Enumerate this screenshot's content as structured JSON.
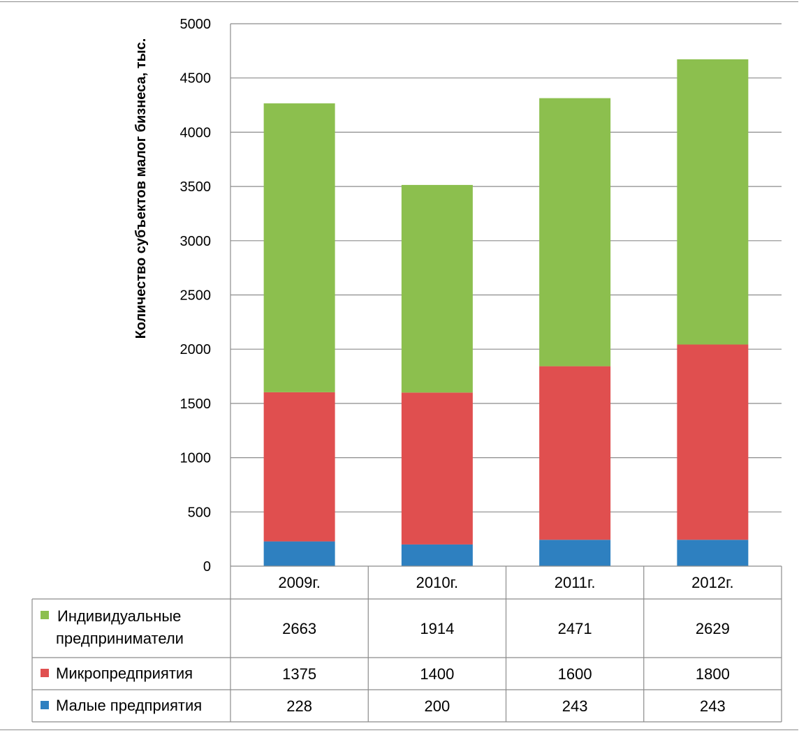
{
  "chart_data": {
    "type": "bar",
    "stacked": true,
    "categories": [
      "2009г.",
      "2010г.",
      "2011г.",
      "2012г."
    ],
    "series": [
      {
        "name": "Малые предприятия",
        "values": [
          228,
          200,
          243,
          243
        ],
        "color": "#2e80c0"
      },
      {
        "name": "Микропредприятия",
        "values": [
          1375,
          1400,
          1600,
          1800
        ],
        "color": "#e04f4f"
      },
      {
        "name": "Индивидуальные предприниматели",
        "values": [
          2663,
          1914,
          2471,
          2629
        ],
        "color": "#8cbf4e"
      }
    ],
    "ylabel": "Количество субъектов малог бизнеса, тыс.",
    "ylim": [
      0,
      5000
    ],
    "yticks": [
      0,
      500,
      1000,
      1500,
      2000,
      2500,
      3000,
      3500,
      4000,
      4500,
      5000
    ],
    "grid": true,
    "data_table": true,
    "legend_placement": "data table rows"
  }
}
